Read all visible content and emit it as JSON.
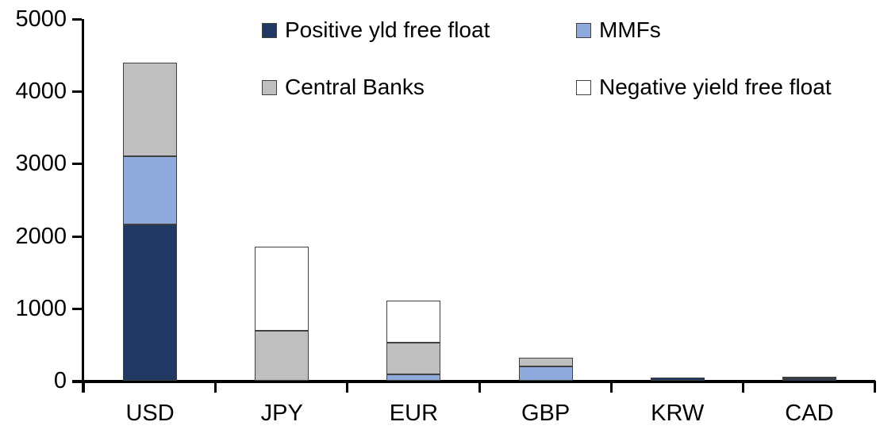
{
  "chart_data": {
    "type": "bar",
    "stacked": true,
    "title": "",
    "xlabel": "",
    "ylabel": "",
    "categories": [
      "USD",
      "JPY",
      "EUR",
      "GBP",
      "KRW",
      "CAD"
    ],
    "series": [
      {
        "name": "Positive yld free float",
        "color": "#1F3864",
        "values": [
          2160,
          0,
          0,
          0,
          40,
          35
        ]
      },
      {
        "name": "MMFs",
        "color": "#8FAADC",
        "values": [
          940,
          0,
          90,
          200,
          0,
          0
        ]
      },
      {
        "name": "Central Banks",
        "color": "#BFBFBF",
        "values": [
          1300,
          690,
          440,
          120,
          0,
          25
        ]
      },
      {
        "name": "Negative yield free float",
        "color": "#FFFFFF",
        "values": [
          0,
          1160,
          580,
          0,
          0,
          0
        ]
      }
    ],
    "totals": [
      4400,
      1850,
      1110,
      320,
      40,
      60
    ],
    "ylim": [
      0,
      5000
    ],
    "ytick_interval": 1000,
    "ytick_labels": [
      "0",
      "1000",
      "2000",
      "3000",
      "4000",
      "5000"
    ],
    "grid": false,
    "legend_position": "top-inside",
    "legend_columns": 2,
    "axis_color": "#000000",
    "segment_border_color": "#404040",
    "background_color": "#FFFFFF"
  }
}
